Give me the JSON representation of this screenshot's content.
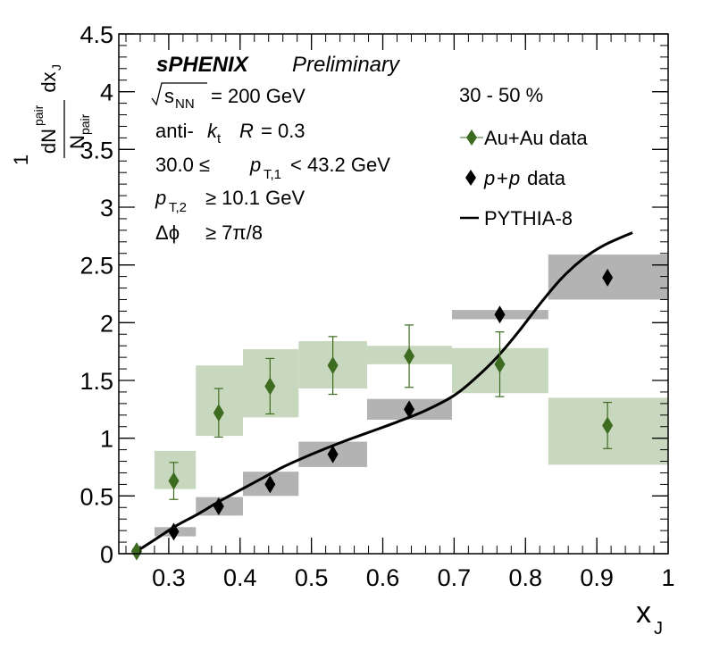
{
  "chart_data": {
    "type": "scatter",
    "xlabel": "x",
    "xlabel_sub": "J",
    "ylabel": {
      "numerator_lead": "1",
      "pair": "pair",
      "dN": "dN",
      "N": "N",
      "dx": "dx",
      "J": "J"
    },
    "xlim": [
      0.23,
      1.0
    ],
    "ylim": [
      0,
      4.5
    ],
    "xticks": [
      "0.3",
      "0.4",
      "0.5",
      "0.6",
      "0.7",
      "0.8",
      "0.9",
      "1"
    ],
    "yticks": [
      "0",
      "0.5",
      "1",
      "1.5",
      "2",
      "2.5",
      "3",
      "3.5",
      "4",
      "4.5"
    ],
    "annotations": {
      "experiment": "sPHENIX",
      "status": "Preliminary",
      "energy_sym": "s",
      "energy_sub": "NN",
      "energy_val": "= 200 GeV",
      "algo_a": "anti-",
      "algo_k": "k",
      "algo_t": "t",
      "algo_R": "R",
      "algo_val": "= 0.3",
      "pt1_lo": "30.0 ≤",
      "pt1_p": "p",
      "pt1_sub": "T,1",
      "pt1_hi": "< 43.2 GeV",
      "pt2_p": "p",
      "pt2_sub": "T,2",
      "pt2_val": "≥ 10.1 GeV",
      "dphi": "Δϕ",
      "dphi_val": "≥ 7π/8",
      "centrality": "30 - 50 %"
    },
    "legend": {
      "placement": "top-right",
      "auau": "Au+Au data",
      "pp_p1": "p",
      "pp_plus": "+",
      "pp_p2": "p",
      "pp_rest": " data",
      "pythia": "PYTHIA-8"
    },
    "colors": {
      "auau": "#3d6b1f",
      "auau_sys": "#c8d8be",
      "pp": "#000000",
      "pp_sys": "#b3b3b3",
      "pythia": "#000000"
    },
    "series": [
      {
        "name": "Au+Au data",
        "points": [
          {
            "x": 0.255,
            "y": 0.02,
            "err": 0.02,
            "sys_x": [
              0.25,
              0.26
            ],
            "sys_y": [
              0.0,
              0.04
            ]
          },
          {
            "x": 0.307,
            "y": 0.63,
            "err": 0.16,
            "sys_x": [
              0.28,
              0.338
            ],
            "sys_y": [
              0.56,
              0.89
            ]
          },
          {
            "x": 0.37,
            "y": 1.22,
            "err": 0.21,
            "sys_x": [
              0.338,
              0.404
            ],
            "sys_y": [
              1.02,
              1.63
            ]
          },
          {
            "x": 0.442,
            "y": 1.45,
            "err": 0.24,
            "sys_x": [
              0.404,
              0.482
            ],
            "sys_y": [
              1.18,
              1.77
            ]
          },
          {
            "x": 0.53,
            "y": 1.63,
            "err": 0.25,
            "sys_x": [
              0.482,
              0.578
            ],
            "sys_y": [
              1.43,
              1.84
            ]
          },
          {
            "x": 0.637,
            "y": 1.71,
            "err": 0.27,
            "sys_x": [
              0.578,
              0.697
            ],
            "sys_y": [
              1.64,
              1.8
            ]
          },
          {
            "x": 0.764,
            "y": 1.64,
            "err": 0.28,
            "sys_x": [
              0.697,
              0.832
            ],
            "sys_y": [
              1.39,
              1.78
            ]
          },
          {
            "x": 0.915,
            "y": 1.11,
            "err": 0.2,
            "sys_x": [
              0.832,
              1.0
            ],
            "sys_y": [
              0.77,
              1.35
            ]
          }
        ]
      },
      {
        "name": "p+p data",
        "points": [
          {
            "x": 0.255,
            "y": 0.02,
            "err": 0.0,
            "sys_x": [
              0.25,
              0.26
            ],
            "sys_y": [
              0.0,
              0.03
            ]
          },
          {
            "x": 0.307,
            "y": 0.19,
            "err": 0.0,
            "sys_x": [
              0.28,
              0.338
            ],
            "sys_y": [
              0.15,
              0.23
            ]
          },
          {
            "x": 0.37,
            "y": 0.41,
            "err": 0.0,
            "sys_x": [
              0.338,
              0.404
            ],
            "sys_y": [
              0.33,
              0.49
            ]
          },
          {
            "x": 0.442,
            "y": 0.6,
            "err": 0.0,
            "sys_x": [
              0.404,
              0.482
            ],
            "sys_y": [
              0.5,
              0.71
            ]
          },
          {
            "x": 0.53,
            "y": 0.86,
            "err": 0.0,
            "sys_x": [
              0.482,
              0.578
            ],
            "sys_y": [
              0.75,
              0.97
            ]
          },
          {
            "x": 0.637,
            "y": 1.25,
            "err": 0.0,
            "sys_x": [
              0.578,
              0.697
            ],
            "sys_y": [
              1.16,
              1.34
            ]
          },
          {
            "x": 0.764,
            "y": 2.07,
            "err": 0.0,
            "sys_x": [
              0.697,
              0.832
            ],
            "sys_y": [
              2.03,
              2.11
            ]
          },
          {
            "x": 0.915,
            "y": 2.39,
            "err": 0.0,
            "sys_x": [
              0.832,
              1.0
            ],
            "sys_y": [
              2.2,
              2.59
            ]
          }
        ]
      },
      {
        "name": "PYTHIA-8",
        "x": [
          0.25,
          0.28,
          0.31,
          0.34,
          0.37,
          0.4,
          0.43,
          0.46,
          0.5,
          0.54,
          0.58,
          0.62,
          0.66,
          0.7,
          0.73,
          0.76,
          0.79,
          0.82,
          0.85,
          0.88,
          0.91,
          0.95
        ],
        "y": [
          0.0,
          0.12,
          0.24,
          0.34,
          0.45,
          0.55,
          0.65,
          0.75,
          0.86,
          0.96,
          1.05,
          1.14,
          1.24,
          1.37,
          1.52,
          1.7,
          1.92,
          2.16,
          2.38,
          2.55,
          2.67,
          2.78
        ]
      }
    ]
  }
}
